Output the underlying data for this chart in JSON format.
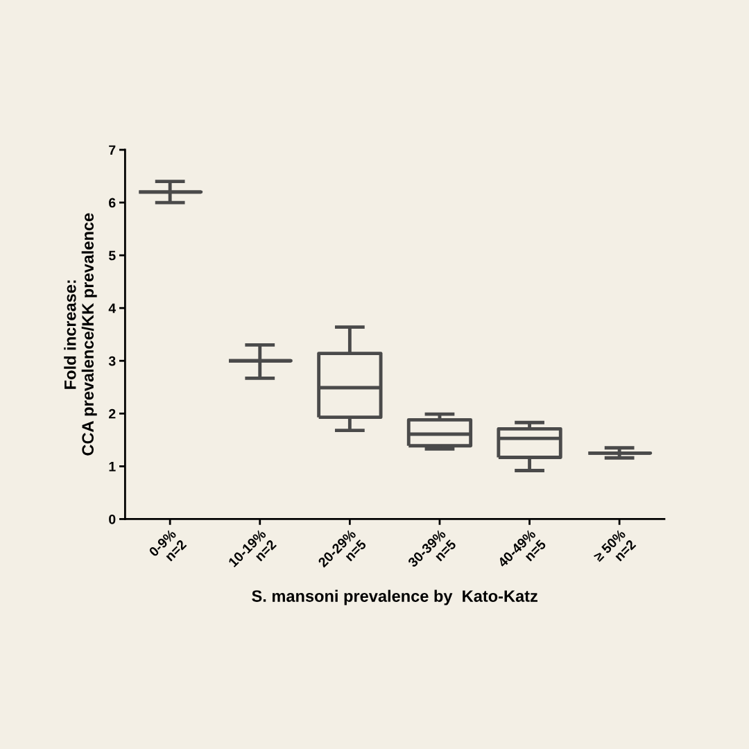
{
  "chart_data": {
    "type": "box",
    "xlabel": "S. mansoni prevalence by  Kato-Katz",
    "ylabel": "Fold increase:\nCCA prevalence/KK prevalence",
    "categories": [
      "0-9%\nn=2",
      "10-19%\nn=2",
      "20-29%\nn=5",
      "30-39%\nn=5",
      "40-49%\nn=5",
      "≥ 50%\nn=2"
    ],
    "boxes": [
      {
        "low": 6.0,
        "q1": 6.2,
        "median": 6.2,
        "q3": 6.2,
        "high": 6.4
      },
      {
        "low": 2.67,
        "q1": 3.0,
        "median": 3.0,
        "q3": 3.0,
        "high": 3.3
      },
      {
        "low": 1.68,
        "q1": 1.93,
        "median": 2.49,
        "q3": 3.14,
        "high": 3.64
      },
      {
        "low": 1.33,
        "q1": 1.39,
        "median": 1.61,
        "q3": 1.88,
        "high": 1.99
      },
      {
        "low": 0.92,
        "q1": 1.17,
        "median": 1.53,
        "q3": 1.71,
        "high": 1.83
      },
      {
        "low": 1.16,
        "q1": 1.25,
        "median": 1.25,
        "q3": 1.25,
        "high": 1.35
      }
    ],
    "color": "#4a4a4a",
    "ylim": [
      0,
      7
    ],
    "yticks": [
      0,
      1,
      2,
      3,
      4,
      5,
      6,
      7
    ],
    "grid": false
  }
}
